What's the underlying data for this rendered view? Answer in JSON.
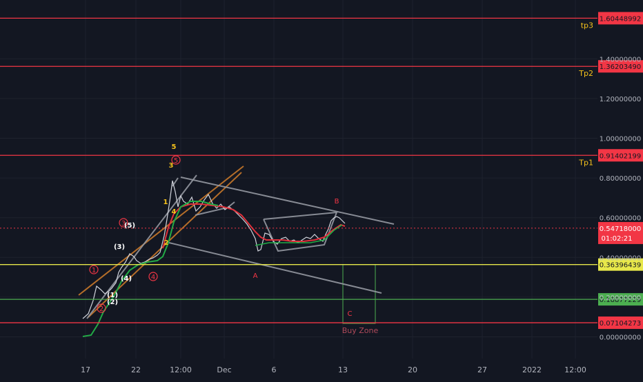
{
  "colors": {
    "background": "#131722",
    "grid": "#1e222d",
    "red_line": "#f23645",
    "yellow_line": "#e8e84a",
    "green_line": "#4caf50",
    "wave_label_yellow": "#f5c21b",
    "wave_label_red": "#f23645",
    "trend_gray": "#9598a1",
    "channel_orange": "#c8782a",
    "ma_green": "#22ab46",
    "ma_red": "#e0313b",
    "tick_text": "#b2b5be",
    "price_tag_text": "#131722"
  },
  "chart_data": {
    "type": "line",
    "title": "",
    "xlabel": "",
    "ylabel": "",
    "x_ticks": [
      "17",
      "22",
      "12:00",
      "Dec",
      "6",
      "13",
      "20",
      "27",
      "2022",
      "12:00"
    ],
    "y_ticks": [
      "1.40000000",
      "1.20000000",
      "1.00000000",
      "0.80000000",
      "0.60000000",
      "0.40000000",
      "0.20000000",
      "0.00000000"
    ],
    "ylim": [
      -0.09,
      1.68
    ],
    "grid": true,
    "current_price": {
      "value": 0.5471,
      "label": "0.54718000",
      "countdown": "01:02:21"
    },
    "levels": [
      {
        "name": "tp3",
        "value": 1.60448992,
        "label": "1.60448992",
        "color": "red"
      },
      {
        "name": "Tp2",
        "value": 1.3620349,
        "label": "1.36203490",
        "color": "red"
      },
      {
        "name": "Tp1",
        "value": 0.91402199,
        "label": "0.91402199",
        "color": "red"
      },
      {
        "name": "",
        "value": 0.36396439,
        "label": "0.36396439",
        "color": "yellow"
      },
      {
        "name": "",
        "value": 0.18877229,
        "label": "0.18877229",
        "color": "green"
      },
      {
        "name": "",
        "value": 0.07104273,
        "label": "0.07104273",
        "color": "red"
      }
    ],
    "zone_label": "Buy Zone",
    "wave_labels": {
      "yellow": [
        "5",
        "3",
        "1",
        "4",
        "2"
      ],
      "circled_red": [
        "1",
        "2",
        "3",
        "4",
        "5"
      ],
      "parenthesized_white": [
        "(1)",
        "(2)",
        "(3)",
        "(4)",
        "(5)"
      ],
      "corrective": [
        "A",
        "B",
        "C"
      ]
    }
  }
}
